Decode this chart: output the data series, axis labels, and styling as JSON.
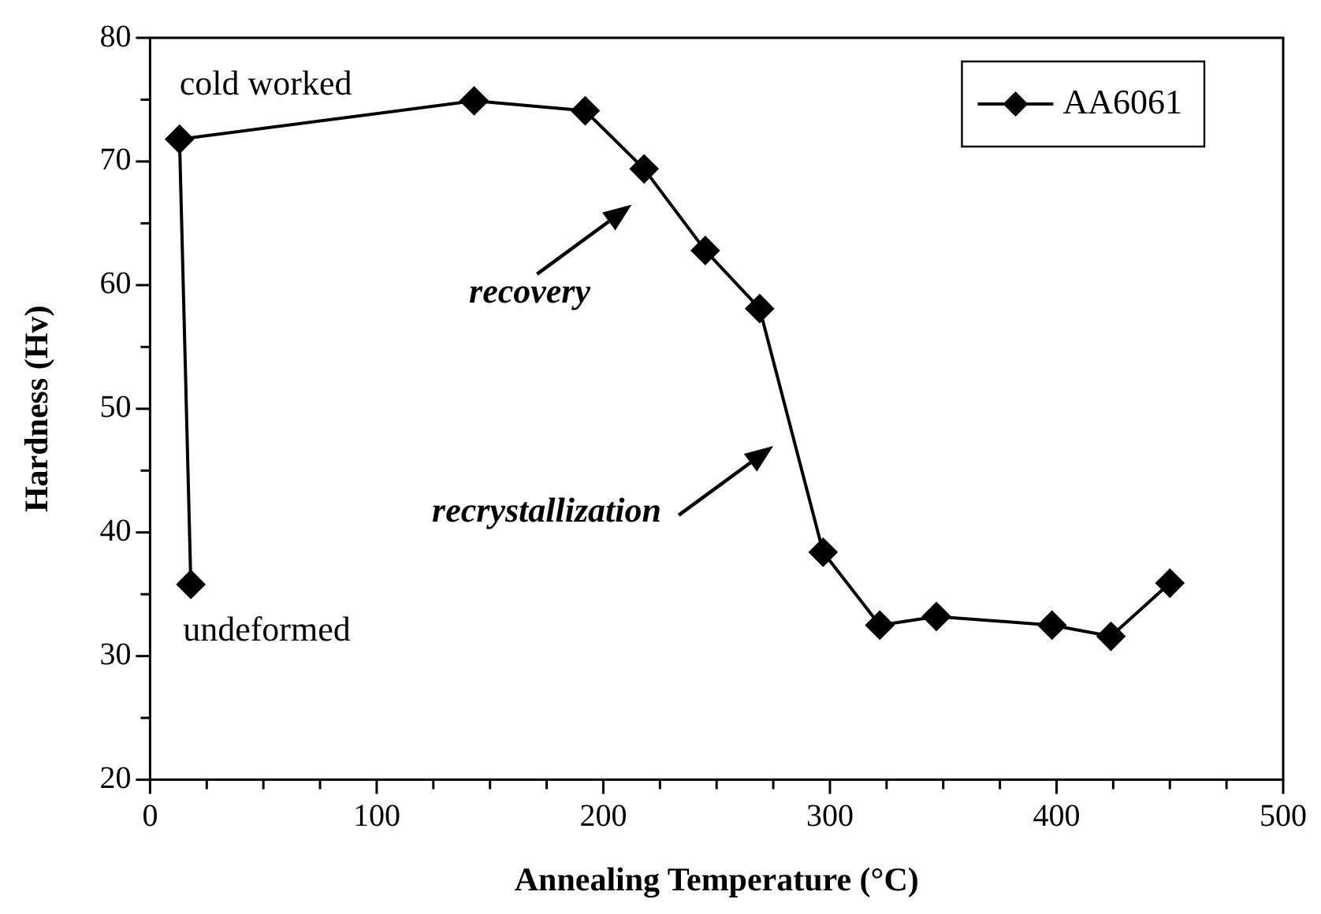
{
  "chart_data": {
    "type": "line",
    "xlabel": "Annealing Temperature (°C)",
    "ylabel": "Hardness (Hv)",
    "series": [
      {
        "name": "AA6061",
        "color": "#000000",
        "x": [
          18,
          13,
          143,
          192,
          218,
          245,
          269,
          297,
          322,
          347,
          398,
          424,
          450
        ],
        "values": [
          35.8,
          71.8,
          74.9,
          74.1,
          69.4,
          62.8,
          58.1,
          38.4,
          32.5,
          33.2,
          32.5,
          31.6,
          35.9
        ]
      }
    ],
    "xlim": [
      0,
      500
    ],
    "ylim": [
      20,
      80
    ],
    "xticks": [
      0,
      {
        "value": 25,
        "label": null
      },
      {
        "value": 50,
        "label": null
      },
      {
        "value": 75,
        "label": null
      },
      100,
      {
        "value": 125,
        "label": null
      },
      {
        "value": 150,
        "label": null
      },
      {
        "value": 175,
        "label": null
      },
      200,
      {
        "value": 225,
        "label": null
      },
      {
        "value": 250,
        "label": null
      },
      {
        "value": 275,
        "label": null
      },
      300,
      {
        "value": 325,
        "label": null
      },
      {
        "value": 350,
        "label": null
      },
      {
        "value": 375,
        "label": null
      },
      400,
      {
        "value": 425,
        "label": null
      },
      {
        "value": 450,
        "label": null
      },
      {
        "value": 475,
        "label": null
      },
      500
    ],
    "yticks": [
      20,
      {
        "value": 25,
        "label": null
      },
      30,
      {
        "value": 35,
        "label": null
      },
      40,
      {
        "value": 45,
        "label": null
      },
      50,
      {
        "value": 55,
        "label": null
      },
      60,
      {
        "value": 65,
        "label": null
      },
      70,
      {
        "value": 75,
        "label": null
      },
      80
    ],
    "annotations": [
      {
        "text": "cold worked",
        "x": 13,
        "y": 71.8
      },
      {
        "text": "undeformed",
        "x": 18,
        "y": 35.8
      },
      "recovery",
      "recrystallization"
    ],
    "grid": false,
    "legend": "top right",
    "marker": "diamond",
    "line_style": "solid"
  }
}
